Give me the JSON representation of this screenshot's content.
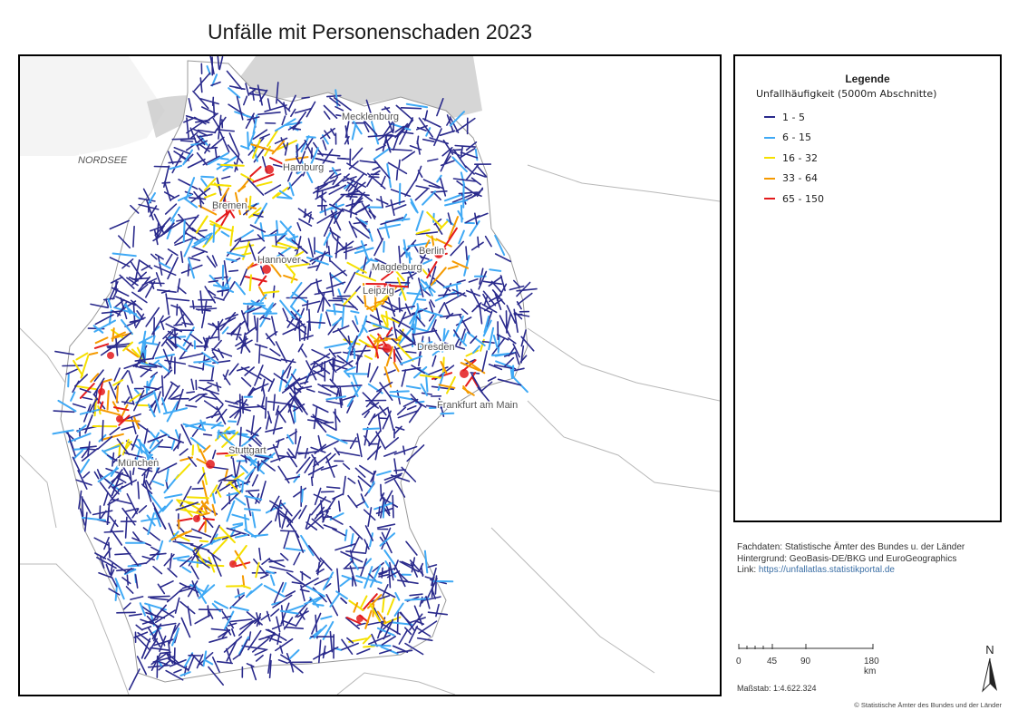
{
  "title": "Unfälle mit Personenschaden 2023",
  "map": {
    "sea_labels": [
      "NORDSEE"
    ],
    "city_labels": [
      "Hamburg",
      "Bremen",
      "Hannover",
      "Berlin",
      "Magdeburg",
      "Leipzig",
      "Dresden",
      "Frankfurt am Main",
      "Stuttgart",
      "München",
      "Mecklenburg"
    ],
    "colors": {
      "land": "#ffffff",
      "neighbor": "#f2f2f2",
      "water": "#c8c8c8",
      "border": "#b8b8b8"
    }
  },
  "legend": {
    "title": "Legende",
    "subtitle": "Unfallhäufigkeit (5000m Abschnitte)",
    "classes": [
      {
        "label": "1 - 5",
        "color": "#2a2a8c"
      },
      {
        "label": "6 - 15",
        "color": "#3fa9f5"
      },
      {
        "label": "16 - 32",
        "color": "#f5e000"
      },
      {
        "label": "33 - 64",
        "color": "#f59a00"
      },
      {
        "label": "65 - 150",
        "color": "#e31a1c"
      }
    ]
  },
  "sources": {
    "line1": "Fachdaten: Statistische Ämter des Bundes u. der Länder",
    "line2": "Hintergrund: GeoBasis-DE/BKG und EuroGeographics",
    "link_prefix": "Link: ",
    "link": "https://unfallatlas.statistikportal.de"
  },
  "scale": {
    "ticks": [
      "0",
      "45",
      "90",
      "180 km"
    ],
    "text": "Maßstab: 1:4.622.324"
  },
  "north_label": "N",
  "copyright": "© Statistische Ämter des Bundes und der Länder"
}
